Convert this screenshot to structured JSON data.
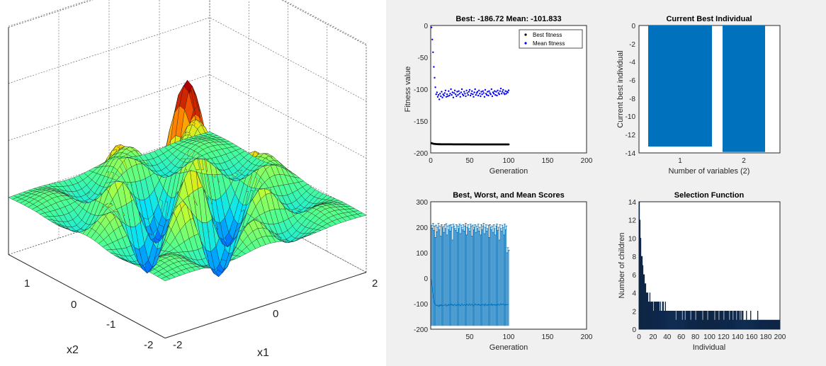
{
  "chart_data": [
    {
      "type": "surface",
      "xlabel": "x1",
      "ylabel": "x2",
      "x_ticks": [
        "2",
        "0",
        "-2"
      ],
      "y_ticks": [
        "1",
        "0",
        "-1",
        "-2"
      ],
      "xlim": [
        -2,
        2
      ],
      "ylim": [
        -2,
        2
      ],
      "colormap": [
        "#00008f",
        "#0060ff",
        "#00e0ff",
        "#50ff90",
        "#c0ff30",
        "#ffd000",
        "#ff6000",
        "#b00000"
      ]
    },
    {
      "type": "scatter",
      "title": "Best: -186.72 Mean: -101.833",
      "xlabel": "Generation",
      "ylabel": "Fitness value",
      "xlim": [
        0,
        200
      ],
      "ylim": [
        -200,
        0
      ],
      "x_ticks": [
        "0",
        "50",
        "100",
        "150",
        "200"
      ],
      "y_ticks": [
        "0",
        "-50",
        "-100",
        "-150",
        "-200"
      ],
      "legend_position": "top-right",
      "series": [
        {
          "name": "Best fitness",
          "color": "#000000",
          "x": [
            1,
            2,
            3,
            4,
            5,
            6,
            7,
            8,
            9,
            10,
            11,
            12,
            13,
            14,
            15,
            16,
            17,
            18,
            19,
            20,
            21,
            22,
            23,
            24,
            25,
            26,
            27,
            28,
            29,
            30,
            31,
            32,
            33,
            34,
            35,
            36,
            37,
            38,
            39,
            40,
            41,
            42,
            43,
            44,
            45,
            46,
            47,
            48,
            49,
            50,
            51,
            52,
            53,
            54,
            55,
            56,
            57,
            58,
            59,
            60,
            61,
            62,
            63,
            64,
            65,
            66,
            67,
            68,
            69,
            70,
            71,
            72,
            73,
            74,
            75,
            76,
            77,
            78,
            79,
            80,
            81,
            82,
            83,
            84,
            85,
            86,
            87,
            88,
            89,
            90,
            91,
            92,
            93,
            94,
            95,
            96,
            97,
            98,
            99,
            100
          ],
          "y": [
            -184.5,
            -185.1,
            -185.5,
            -185.7,
            -185.9,
            -186.0,
            -186.1,
            -186.2,
            -186.2,
            -186.3,
            -186.3,
            -186.3,
            -186.4,
            -186.4,
            -186.4,
            -186.4,
            -186.4,
            -186.5,
            -186.5,
            -186.5,
            -186.5,
            -186.5,
            -186.5,
            -186.5,
            -186.5,
            -186.5,
            -186.5,
            -186.6,
            -186.6,
            -186.6,
            -186.6,
            -186.6,
            -186.6,
            -186.6,
            -186.6,
            -186.6,
            -186.6,
            -186.6,
            -186.6,
            -186.6,
            -186.6,
            -186.6,
            -186.6,
            -186.6,
            -186.6,
            -186.6,
            -186.6,
            -186.6,
            -186.6,
            -186.6,
            -186.7,
            -186.7,
            -186.7,
            -186.7,
            -186.7,
            -186.7,
            -186.7,
            -186.7,
            -186.7,
            -186.7,
            -186.7,
            -186.7,
            -186.7,
            -186.7,
            -186.7,
            -186.7,
            -186.7,
            -186.7,
            -186.7,
            -186.7,
            -186.7,
            -186.7,
            -186.7,
            -186.7,
            -186.7,
            -186.7,
            -186.7,
            -186.7,
            -186.7,
            -186.7,
            -186.7,
            -186.7,
            -186.7,
            -186.7,
            -186.7,
            -186.7,
            -186.7,
            -186.7,
            -186.7,
            -186.7,
            -186.7,
            -186.7,
            -186.7,
            -186.7,
            -186.7,
            -186.7,
            -186.7,
            -186.7,
            -186.7,
            -186.72
          ]
        },
        {
          "name": "Mean fitness",
          "color": "#0000ff",
          "x": [
            1,
            2,
            3,
            4,
            5,
            6,
            7,
            8,
            9,
            10,
            11,
            12,
            13,
            14,
            15,
            16,
            17,
            18,
            19,
            20,
            21,
            22,
            23,
            24,
            25,
            26,
            27,
            28,
            29,
            30,
            31,
            32,
            33,
            34,
            35,
            36,
            37,
            38,
            39,
            40,
            41,
            42,
            43,
            44,
            45,
            46,
            47,
            48,
            49,
            50,
            51,
            52,
            53,
            54,
            55,
            56,
            57,
            58,
            59,
            60,
            61,
            62,
            63,
            64,
            65,
            66,
            67,
            68,
            69,
            70,
            71,
            72,
            73,
            74,
            75,
            76,
            77,
            78,
            79,
            80,
            81,
            82,
            83,
            84,
            85,
            86,
            87,
            88,
            89,
            90,
            91,
            92,
            93,
            94,
            95,
            96,
            97,
            98,
            99,
            100
          ],
          "y": [
            -3,
            -22,
            -42,
            -65,
            -82,
            -97,
            -108,
            -105,
            -112,
            -109,
            -116,
            -107,
            -111,
            -104,
            -113,
            -108,
            -110,
            -106,
            -102,
            -112,
            -108,
            -111,
            -103,
            -110,
            -107,
            -100,
            -109,
            -105,
            -113,
            -106,
            -102,
            -108,
            -111,
            -104,
            -109,
            -103,
            -107,
            -112,
            -105,
            -100,
            -108,
            -110,
            -104,
            -107,
            -111,
            -102,
            -106,
            -109,
            -104,
            -101,
            -110,
            -107,
            -103,
            -108,
            -112,
            -105,
            -100,
            -109,
            -106,
            -104,
            -110,
            -102,
            -107,
            -111,
            -104,
            -108,
            -103,
            -106,
            -112,
            -101,
            -107,
            -109,
            -104,
            -110,
            -103,
            -106,
            -108,
            -100,
            -111,
            -105,
            -107,
            -103,
            -109,
            -104,
            -110,
            -102,
            -106,
            -108,
            -103,
            -99,
            -107,
            -104,
            -101,
            -106,
            -108,
            -103,
            -107,
            -104,
            -105,
            -101.833
          ]
        }
      ]
    },
    {
      "type": "bar",
      "title": "Current Best Individual",
      "xlabel": "Number of variables (2)",
      "ylabel": "Current best individual",
      "categories": [
        "1",
        "2"
      ],
      "values": [
        -13.3,
        -13.9
      ],
      "ylim": [
        -14,
        0
      ],
      "y_ticks": [
        "0",
        "-2",
        "-4",
        "-6",
        "-8",
        "-10",
        "-12",
        "-14"
      ],
      "color": "#0072bd"
    },
    {
      "type": "errorbar",
      "title": "Best, Worst, and Mean Scores",
      "xlabel": "Generation",
      "xlim": [
        0,
        200
      ],
      "ylim": [
        -200,
        300
      ],
      "x_ticks": [
        "50",
        "100",
        "150",
        "200"
      ],
      "y_ticks": [
        "300",
        "200",
        "100",
        "0",
        "-100",
        "-200"
      ],
      "color": "#0072bd",
      "worst": [
        208,
        196,
        215,
        188,
        205,
        160,
        208,
        182,
        200,
        215,
        190,
        205,
        165,
        210,
        198,
        203,
        180,
        210,
        195,
        214,
        170,
        205,
        190,
        208,
        185,
        210,
        200,
        150,
        212,
        205,
        195,
        188,
        210,
        180,
        205,
        195,
        212,
        175,
        208,
        200,
        190,
        210,
        185,
        205,
        215,
        170,
        200,
        210,
        195,
        185,
        212,
        205,
        165,
        208,
        190,
        200,
        210,
        180,
        205,
        195,
        212,
        185,
        200,
        170,
        210,
        190,
        205,
        215,
        175,
        200,
        210,
        185,
        195,
        208,
        160,
        210,
        200,
        190,
        205,
        180,
        210,
        195,
        170,
        205,
        212,
        188,
        200,
        150,
        210,
        195,
        185,
        208,
        200,
        170,
        212,
        190,
        205,
        100,
        120,
        110
      ],
      "best_scores": [
        -186.7,
        -186.7,
        -186.7,
        -186.7,
        -186.7,
        -186.7,
        -186.7,
        -186.7,
        -186.7,
        -186.7,
        -186.7,
        -186.7,
        -186.7,
        -186.7,
        -186.7,
        -186.7,
        -186.7,
        -186.7,
        -186.7,
        -186.7,
        -186.7,
        -186.7,
        -186.7,
        -186.7,
        -186.7,
        -186.7,
        -186.7,
        -186.7,
        -186.7,
        -186.7,
        -186.7,
        -186.7,
        -186.7,
        -186.7,
        -186.7,
        -186.7,
        -186.7,
        -186.7,
        -186.7,
        -186.7,
        -186.7,
        -186.7,
        -186.7,
        -186.7,
        -186.7,
        -186.7,
        -186.7,
        -186.7,
        -186.7,
        -186.7,
        -186.7,
        -186.7,
        -186.7,
        -186.7,
        -186.7,
        -186.7,
        -186.7,
        -186.7,
        -186.7,
        -186.7,
        -186.7,
        -186.7,
        -186.7,
        -186.7,
        -186.7,
        -186.7,
        -186.7,
        -186.7,
        -186.7,
        -186.7,
        -186.7,
        -186.7,
        -186.7,
        -186.7,
        -186.7,
        -186.7,
        -186.7,
        -186.7,
        -186.7,
        -186.7,
        -186.7,
        -186.7,
        -186.7,
        -186.7,
        -186.7,
        -186.7,
        -186.7,
        -186.7,
        -186.7,
        -186.7,
        -186.7,
        -186.7,
        -186.7,
        -186.7,
        -186.7,
        -186.7,
        -186.7,
        -186.7,
        -186.7,
        -186.7
      ],
      "mean": [
        -3,
        -30,
        -60,
        -85,
        -100,
        -104,
        -108,
        -105,
        -110,
        -106,
        -112,
        -104,
        -108,
        -103,
        -109,
        -106,
        -107,
        -104,
        -102,
        -110,
        -106,
        -108,
        -102,
        -107,
        -105,
        -100,
        -106,
        -103,
        -109,
        -104,
        -101,
        -106,
        -108,
        -103,
        -106,
        -102,
        -105,
        -109,
        -103,
        -100,
        -106,
        -107,
        -103,
        -105,
        -108,
        -101,
        -104,
        -107,
        -102,
        -100,
        -107,
        -105,
        -102,
        -106,
        -109,
        -103,
        -100,
        -106,
        -104,
        -102,
        -107,
        -101,
        -105,
        -108,
        -103,
        -106,
        -102,
        -104,
        -109,
        -100,
        -105,
        -107,
        -103,
        -107,
        -102,
        -104,
        -106,
        -100,
        -108,
        -103,
        -105,
        -102,
        -107,
        -103,
        -107,
        -101,
        -104,
        -106,
        -102,
        -99,
        -105,
        -103,
        -100,
        -104,
        -106,
        -102,
        -105,
        -103,
        -104,
        -101.833
      ]
    },
    {
      "type": "bar",
      "title": "Selection Function",
      "xlabel": "Individual",
      "ylabel": "Number of children",
      "xlim": [
        0,
        200
      ],
      "ylim": [
        0,
        14
      ],
      "x_ticks": [
        "0",
        "20",
        "40",
        "60",
        "80",
        "100",
        "120",
        "140",
        "160",
        "180",
        "200"
      ],
      "y_ticks": [
        "14",
        "12",
        "10",
        "8",
        "6",
        "4",
        "2",
        "0"
      ],
      "color": "#0a1e3c",
      "values": [
        14,
        12,
        10,
        8,
        8,
        7,
        6,
        6,
        5,
        5,
        4,
        4,
        4,
        3,
        3,
        4,
        3,
        3,
        3,
        3,
        2,
        3,
        3,
        3,
        3,
        3,
        3,
        3,
        3,
        2,
        3,
        2,
        2,
        3,
        3,
        2,
        2,
        3,
        2,
        2,
        2,
        2,
        2,
        2,
        2,
        2,
        2,
        2,
        2,
        2,
        2,
        2,
        1,
        2,
        2,
        2,
        2,
        2,
        2,
        2,
        2,
        1,
        2,
        2,
        2,
        1,
        2,
        2,
        2,
        2,
        2,
        2,
        2,
        1,
        2,
        2,
        2,
        2,
        2,
        2,
        1,
        2,
        2,
        2,
        2,
        2,
        2,
        2,
        2,
        2,
        1,
        2,
        2,
        2,
        2,
        2,
        2,
        1,
        2,
        2,
        2,
        2,
        2,
        2,
        2,
        2,
        2,
        1,
        2,
        2,
        2,
        2,
        2,
        1,
        2,
        2,
        2,
        2,
        2,
        2,
        1,
        2,
        2,
        2,
        2,
        2,
        2,
        2,
        1,
        2,
        2,
        2,
        2,
        1,
        2,
        2,
        2,
        2,
        1,
        2,
        2,
        2,
        2,
        1,
        2,
        1,
        2,
        2,
        1,
        1,
        1,
        1,
        2,
        1,
        1,
        1,
        1,
        1,
        2,
        1,
        1,
        1,
        1,
        1,
        1,
        1,
        1,
        1,
        2,
        1,
        1,
        1,
        1,
        1,
        1,
        1,
        1,
        1,
        1,
        1,
        1,
        1,
        1,
        1,
        1,
        1,
        1,
        1,
        1,
        1,
        1,
        1,
        1,
        1,
        1,
        1,
        1,
        1,
        1,
        1
      ]
    }
  ]
}
